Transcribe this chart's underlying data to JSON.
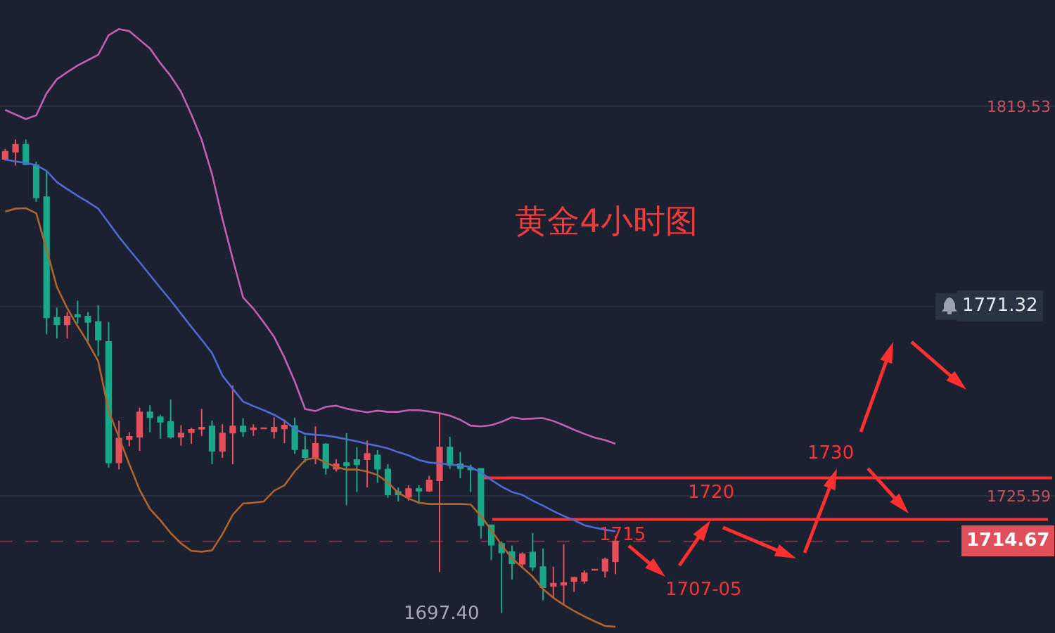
{
  "chart_data": {
    "type": "candlestick",
    "title": "黄金4小时图",
    "categories": [
      null,
      null,
      null,
      null,
      null,
      null,
      null,
      null,
      null,
      null,
      null,
      null,
      null,
      null,
      null,
      null,
      null,
      null,
      null,
      null,
      null,
      null,
      null,
      null,
      null,
      null,
      null,
      null,
      null,
      null,
      null,
      null,
      null,
      null,
      null,
      null,
      null,
      null,
      null,
      null,
      null,
      null,
      null,
      null,
      null,
      null,
      null,
      null,
      null,
      null,
      null,
      null,
      null,
      null,
      null,
      null,
      null,
      null,
      null,
      null,
      null,
      null,
      null,
      null,
      null,
      null,
      null,
      null,
      null,
      null,
      null,
      null,
      null,
      null,
      null,
      null,
      null,
      null,
      null,
      null,
      null,
      null,
      null,
      null,
      null,
      null,
      null,
      null,
      null,
      null,
      null,
      null,
      null,
      null,
      null,
      null,
      null,
      null,
      null,
      null,
      null,
      null
    ],
    "ohlc": [
      [
        1806.9,
        1809.3,
        1806.5,
        1808.6
      ],
      [
        1808.6,
        1811.6,
        1805.3,
        1810.3
      ],
      [
        1810.3,
        1811.6,
        1805.4,
        1805.6
      ],
      [
        1805.4,
        1806.2,
        1796.6,
        1797.6
      ],
      [
        1797.7,
        1804.0,
        1764.6,
        1768.7
      ],
      [
        1768.6,
        1771.0,
        1763.6,
        1767.0
      ],
      [
        1767.0,
        1770.0,
        1763.6,
        1768.9
      ],
      [
        1769.3,
        1772.7,
        1767.2,
        1768.9
      ],
      [
        1768.9,
        1770.0,
        1762.3,
        1767.6
      ],
      [
        1767.6,
        1771.6,
        1759.3,
        1763.3
      ],
      [
        1762.8,
        1767.6,
        1732.5,
        1733.7
      ],
      [
        1733.7,
        1743.8,
        1732.0,
        1739.5
      ],
      [
        1739.3,
        1741.0,
        1737.6,
        1739.9
      ],
      [
        1739.9,
        1746.9,
        1736.5,
        1745.8
      ],
      [
        1745.8,
        1747.5,
        1741.0,
        1744.6
      ],
      [
        1744.6,
        1745.2,
        1739.5,
        1743.5
      ],
      [
        1743.5,
        1748.9,
        1739.5,
        1739.9
      ],
      [
        1739.9,
        1742.7,
        1737.8,
        1740.7
      ],
      [
        1741.0,
        1742.1,
        1738.2,
        1741.6
      ],
      [
        1741.8,
        1746.6,
        1740.1,
        1742.1
      ],
      [
        1742.4,
        1743.8,
        1733.3,
        1736.5
      ],
      [
        1736.5,
        1742.9,
        1734.8,
        1740.7
      ],
      [
        1740.9,
        1752.3,
        1733.3,
        1742.4
      ],
      [
        1742.4,
        1744.4,
        1739.9,
        1741.2
      ],
      [
        1741.7,
        1742.9,
        1740.1,
        1742.0
      ],
      [
        1741.9,
        1742.1,
        1741.8,
        1742.0
      ],
      [
        1741.2,
        1744.6,
        1739.5,
        1742.1
      ],
      [
        1741.9,
        1744.1,
        1738.4,
        1742.6
      ],
      [
        1742.5,
        1744.5,
        1735.8,
        1736.9
      ],
      [
        1736.7,
        1740.1,
        1733.7,
        1735.0
      ],
      [
        1734.7,
        1742.4,
        1733.3,
        1738.2
      ],
      [
        1738.1,
        1738.4,
        1730.8,
        1732.4
      ],
      [
        1732.2,
        1734.5,
        1731.5,
        1733.3
      ],
      [
        1733.6,
        1740.8,
        1723.4,
        1733.0
      ],
      [
        1734.3,
        1737.4,
        1726.6,
        1733.3
      ],
      [
        1734.5,
        1739.0,
        1727.7,
        1735.8
      ],
      [
        1735.4,
        1736.7,
        1728.8,
        1732.2
      ],
      [
        1732.0,
        1733.3,
        1725.2,
        1726.0
      ],
      [
        1726.6,
        1727.7,
        1724.3,
        1726.0
      ],
      [
        1725.4,
        1728.2,
        1724.5,
        1727.3
      ],
      [
        1727.3,
        1728.2,
        1723.7,
        1726.9
      ],
      [
        1726.9,
        1730.5,
        1726.6,
        1729.4
      ],
      [
        1729.4,
        1745.5,
        1707.3,
        1737.3
      ],
      [
        1737.3,
        1739.9,
        1732.2,
        1733.1
      ],
      [
        1733.3,
        1736.2,
        1729.9,
        1732.3
      ],
      [
        1732.3,
        1733.2,
        1726.6,
        1732.0
      ],
      [
        1732.2,
        1732.2,
        1715.3,
        1718.6
      ],
      [
        1718.6,
        1718.6,
        1710.2,
        1713.9
      ],
      [
        1714.1,
        1714.7,
        1697.4,
        1712.0
      ],
      [
        1712.1,
        1713.7,
        1705.5,
        1709.4
      ],
      [
        1709.3,
        1712.0,
        1708.6,
        1711.6
      ],
      [
        1712.0,
        1716.7,
        1707.6,
        1708.6
      ],
      [
        1708.5,
        1713.0,
        1700.5,
        1703.6
      ],
      [
        1703.9,
        1708.6,
        1701.1,
        1704.5
      ],
      [
        1704.2,
        1714.0,
        1699.4,
        1704.7
      ],
      [
        1705.1,
        1706.2,
        1702.5,
        1705.9
      ],
      [
        1705.2,
        1707.7,
        1704.5,
        1707.0
      ],
      [
        1707.8,
        1708.0,
        1707.7,
        1707.9
      ],
      [
        1707.6,
        1710.8,
        1706.0,
        1710.3
      ],
      [
        1709.9,
        1716.0,
        1706.8,
        1714.67
      ],
      null,
      null,
      null,
      null,
      null,
      null,
      null,
      null,
      null,
      null,
      null,
      null,
      null,
      null,
      null,
      null,
      null,
      null,
      null,
      null,
      null,
      null,
      null,
      null,
      null,
      null,
      null,
      null,
      null,
      null,
      null,
      null,
      null,
      null,
      null,
      null,
      null,
      null,
      null,
      null,
      null,
      null
    ],
    "colors": [
      "#e5505c",
      "#e5505c",
      "#17a98a",
      "#17a98a",
      "#17a98a",
      "#17a98a",
      "#e5505c",
      "#17a98a",
      "#17a98a",
      "#17a98a",
      "#17a98a",
      "#e5505c",
      "#e5505c",
      "#e5505c",
      "#17a98a",
      "#17a98a",
      "#17a98a",
      "#e5505c",
      "#e5505c",
      "#e5505c",
      "#17a98a",
      "#e5505c",
      "#e5505c",
      "#17a98a",
      "#e5505c",
      "#e5505c",
      "#e5505c",
      "#e5505c",
      "#17a98a",
      "#17a98a",
      "#e5505c",
      "#17a98a",
      "#e5505c",
      "#17a98a",
      "#17a98a",
      "#e5505c",
      "#17a98a",
      "#17a98a",
      "#17a98a",
      "#e5505c",
      "#17a98a",
      "#e5505c",
      "#e5505c",
      "#17a98a",
      "#17a98a",
      "#17a98a",
      "#17a98a",
      "#17a98a",
      "#17a98a",
      "#17a98a",
      "#e5505c",
      "#17a98a",
      "#17a98a",
      "#e5505c",
      "#e5505c",
      "#e5505c",
      "#e5505c",
      "#e5505c",
      "#e5505c",
      "#e5505c",
      null,
      null,
      null,
      null,
      null,
      null,
      null,
      null,
      null,
      null,
      null,
      null,
      null,
      null,
      null,
      null,
      null,
      null,
      null,
      null,
      null,
      null,
      null,
      null,
      null,
      null,
      null,
      null,
      null,
      null,
      null,
      null,
      null,
      null,
      null,
      null,
      null,
      null,
      null,
      null,
      null,
      null
    ],
    "series": [
      {
        "type": "line",
        "color": "#c45fb0",
        "values": [
          1818.7,
          1817.6,
          1816.5,
          1817.4,
          1822.7,
          1826.1,
          1827.8,
          1829.4,
          1830.7,
          1832.0,
          1836.7,
          1838.2,
          1837.7,
          1835.6,
          1833.5,
          1830.0,
          1826.9,
          1823.1,
          1817.6,
          1811.5,
          1803.2,
          1792.5,
          1782.8,
          1773.5,
          1770.8,
          1767.5,
          1764.0,
          1759.0,
          1753.2,
          1746.6,
          1746.1,
          1747.1,
          1747.4,
          1746.7,
          1746.2,
          1745.8,
          1746.2,
          1745.9,
          1745.9,
          1746.3,
          1746.3,
          1746.0,
          1745.6,
          1745.0,
          1744.0,
          1742.6,
          1742.4,
          1742.7,
          1743.5,
          1744.6,
          1744.2,
          1744.3,
          1744.4,
          1743.7,
          1742.7,
          1741.6,
          1740.6,
          1739.7,
          1739.1,
          1738.2,
          null,
          null,
          null,
          null,
          null,
          null,
          null,
          null,
          null,
          null,
          null,
          null,
          null,
          null,
          null,
          null,
          null,
          null,
          null,
          null,
          null,
          null,
          null,
          null,
          null,
          null,
          null,
          null,
          null,
          null,
          null,
          null,
          null,
          null,
          null,
          null,
          null,
          null,
          null,
          null,
          null,
          null
        ]
      },
      {
        "type": "line",
        "color": "#4f6ad6",
        "values": [
          1806.7,
          1806.3,
          1805.9,
          1805.4,
          1804.0,
          1801.3,
          1799.6,
          1798.0,
          1796.5,
          1794.9,
          1791.5,
          1788.1,
          1785.0,
          1782.0,
          1778.9,
          1775.8,
          1772.8,
          1769.6,
          1766.4,
          1763.3,
          1760.1,
          1754.7,
          1751.5,
          1748.4,
          1747.3,
          1746.3,
          1745.2,
          1743.8,
          1741.8,
          1740.6,
          1740.4,
          1740.2,
          1739.8,
          1739.3,
          1738.8,
          1738.2,
          1737.7,
          1737.1,
          1736.2,
          1735.4,
          1734.3,
          1733.7,
          1733.5,
          1733.2,
          1733.0,
          1732.6,
          1731.3,
          1729.5,
          1727.9,
          1726.6,
          1725.9,
          1724.5,
          1723.3,
          1722.0,
          1720.8,
          1719.8,
          1718.6,
          1718.0,
          1717.5,
          1717.1,
          null,
          null,
          null,
          null,
          null,
          null,
          null,
          null,
          null,
          null,
          null,
          null,
          null,
          null,
          null,
          null,
          null,
          null,
          null,
          null,
          null,
          null,
          null,
          null,
          null,
          null,
          null,
          null,
          null,
          null,
          null,
          null,
          null,
          null,
          null,
          null,
          null,
          null,
          null,
          null,
          null,
          null
        ]
      },
      {
        "type": "line",
        "color": "#b0642c",
        "values": [
          1794.2,
          1794.9,
          1795.0,
          1793.8,
          1785.1,
          1776.0,
          1770.9,
          1766.6,
          1762.6,
          1758.1,
          1746.2,
          1739.8,
          1733.3,
          1727.1,
          1722.5,
          1719.8,
          1716.7,
          1714.2,
          1712.4,
          1712.2,
          1712.5,
          1716.4,
          1721.1,
          1723.8,
          1724.0,
          1724.3,
          1726.9,
          1728.2,
          1731.6,
          1734.3,
          1734.9,
          1733.7,
          1732.6,
          1732.0,
          1732.0,
          1731.5,
          1730.7,
          1728.9,
          1726.4,
          1725.0,
          1724.0,
          1723.7,
          1723.7,
          1723.7,
          1723.7,
          1723.6,
          1720.8,
          1717.4,
          1713.8,
          1710.6,
          1708.4,
          1706.2,
          1703.2,
          1701.1,
          1699.4,
          1697.9,
          1696.6,
          1695.4,
          1694.3,
          1694.1,
          null,
          null,
          null,
          null,
          null,
          null,
          null,
          null,
          null,
          null,
          null,
          null,
          null,
          null,
          null,
          null,
          null,
          null,
          null,
          null,
          null,
          null,
          null,
          null,
          null,
          null,
          null,
          null,
          null,
          null,
          null,
          null,
          null,
          null,
          null,
          null,
          null,
          null,
          null,
          null,
          null,
          null
        ]
      }
    ],
    "ylim": [
      1692.6,
      1845.2
    ],
    "yticks": [
      1819.53,
      1725.59
    ],
    "grid": "y",
    "tick_labels": "y",
    "ref_lines": [
      {
        "axis": "y",
        "value": 1730,
        "label": "1730",
        "color": "#ff3030"
      },
      {
        "axis": "y",
        "value": 1720,
        "label": "1720",
        "color": "#ff3030"
      },
      {
        "axis": "y",
        "value": 1714.67,
        "label": "1714.67",
        "color": "#7a3340",
        "line_style": "dashed"
      },
      {
        "axis": "y",
        "value": 1771.32,
        "label": "1771.32",
        "color": "#283040"
      }
    ],
    "annotations": [
      "1715",
      "1707-05",
      "1697.40"
    ]
  }
}
